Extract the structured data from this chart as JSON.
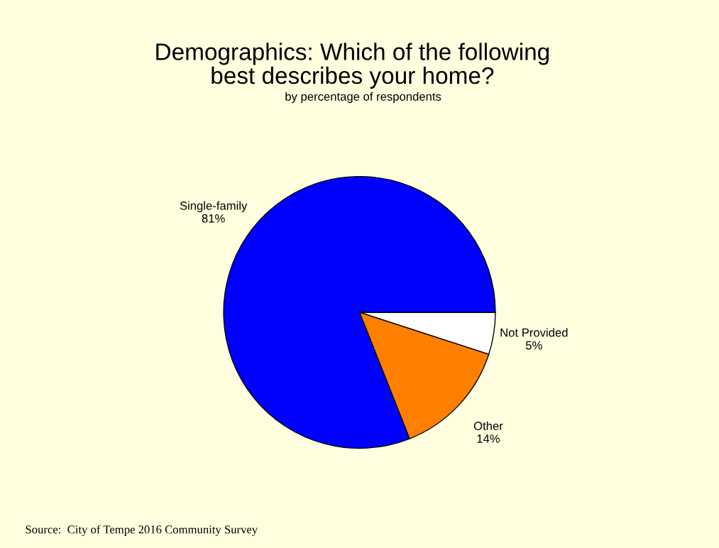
{
  "chart_data": {
    "type": "pie",
    "title": "Demographics: Which of the following\nbest describes your home?",
    "subtitle": "by percentage of respondents",
    "categories": [
      "Not Provided",
      "Other",
      "Single-family"
    ],
    "values": [
      5,
      14,
      81
    ],
    "value_labels": [
      "5%",
      "14%",
      "81%"
    ],
    "colors": [
      "#ffffff",
      "#ff8000",
      "#0000ff"
    ],
    "annotations": [
      "Source:  City of Tempe 2016 Community Survey"
    ],
    "legend": false
  }
}
